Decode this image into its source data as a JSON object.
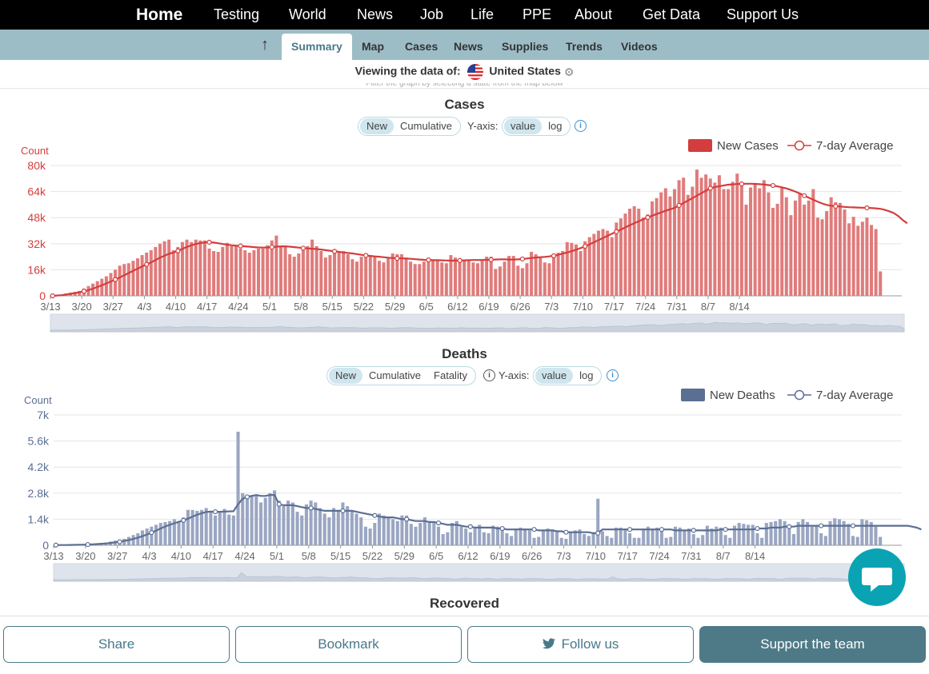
{
  "topnav": {
    "items": [
      "Home",
      "Testing",
      "World",
      "News",
      "Job",
      "Life",
      "PPE",
      "About",
      "Get Data",
      "Support Us"
    ]
  },
  "subnav": {
    "up_icon": "arrow-up-icon",
    "tabs": [
      "Summary",
      "Map",
      "Cases",
      "News",
      "Supplies",
      "Trends",
      "Videos"
    ],
    "active_tab": "Summary"
  },
  "viewing": {
    "label": "Viewing the data of:",
    "country": "United States",
    "flag_icon": "us-flag-icon",
    "settings_icon": "gear-icon",
    "hint": "Filter the graph by selecting a state from the map below"
  },
  "colors": {
    "cases": "#e07b7b",
    "cases_line": "#d43d3d",
    "deaths": "#9aa6c2",
    "deaths_line": "#5b6f94",
    "accent": "#48798a",
    "chat": "#0aa3b4"
  },
  "cases_panel": {
    "title": "Cases",
    "toggles": [
      "New",
      "Cumulative"
    ],
    "active_toggle": "New",
    "yaxis_label": "Y-axis:",
    "yaxis_options": [
      "value",
      "log"
    ],
    "active_yaxis": "value",
    "legend": [
      "New Cases",
      "7-day Average"
    ]
  },
  "deaths_panel": {
    "title": "Deaths",
    "toggles": [
      "New",
      "Cumulative",
      "Fatality"
    ],
    "active_toggle": "New",
    "yaxis_label": "Y-axis:",
    "yaxis_options": [
      "value",
      "log"
    ],
    "active_yaxis": "value",
    "legend": [
      "New Deaths",
      "7-day Average"
    ]
  },
  "recovered_panel": {
    "title": "Recovered"
  },
  "chart_data": [
    {
      "type": "bar",
      "title": "Cases",
      "ylabel": "Count",
      "ylim": [
        0,
        80000
      ],
      "yticks": [
        "0",
        "16k",
        "32k",
        "48k",
        "64k",
        "80k"
      ],
      "xticks": [
        "3/13",
        "3/20",
        "3/27",
        "4/3",
        "4/10",
        "4/17",
        "4/24",
        "5/1",
        "5/8",
        "5/15",
        "5/22",
        "5/29",
        "6/5",
        "6/12",
        "6/19",
        "6/26",
        "7/3",
        "7/10",
        "7/17",
        "7/24",
        "7/31",
        "8/7",
        "8/14"
      ],
      "x_start": "3/13",
      "x_end": "8/20",
      "legend_position": "top-right",
      "grid": true,
      "series": [
        {
          "name": "New Cases",
          "values": [
            0,
            400,
            800,
            1500,
            2000,
            2400,
            3000,
            4500,
            6000,
            7500,
            9000,
            10500,
            12000,
            14000,
            16000,
            18500,
            19500,
            20000,
            21500,
            23000,
            25000,
            26500,
            28000,
            30000,
            32000,
            33500,
            34500,
            28000,
            30000,
            33000,
            34500,
            33000,
            34500,
            34000,
            34000,
            29000,
            27500,
            27000,
            30000,
            32500,
            30500,
            31000,
            29000,
            28000,
            26500,
            28000,
            29000,
            29000,
            31000,
            34000,
            37000,
            30500,
            30000,
            25500,
            24000,
            26000,
            28000,
            30500,
            34500,
            30500,
            27500,
            23500,
            25000,
            26000,
            26500,
            27500,
            25500,
            22500,
            21000,
            24000,
            25000,
            25000,
            24000,
            21500,
            20500,
            23500,
            26000,
            25500,
            25500,
            23500,
            21000,
            19500,
            19500,
            21000,
            23500,
            22000,
            21500,
            20500,
            20000,
            25000,
            23500,
            22000,
            22000,
            22000,
            20500,
            20000,
            22000,
            24000,
            24000,
            16500,
            18000,
            21000,
            24500,
            24500,
            18500,
            17000,
            20000,
            27000,
            25500,
            23500,
            20500,
            20000,
            24500,
            26500,
            27500,
            33000,
            32500,
            31500,
            27500,
            33500,
            36000,
            38000,
            40000,
            41000,
            40000,
            36000,
            45000,
            47500,
            50500,
            53500,
            55000,
            53500,
            48000,
            50000,
            58000,
            60000,
            63500,
            66000,
            61000,
            65500,
            71000,
            72500,
            62000,
            67000,
            77500,
            72500,
            74500,
            72000,
            69500,
            74000,
            65500,
            65500,
            70000,
            75000,
            69500,
            56000,
            66500,
            68500,
            66000,
            71000,
            63500,
            54000,
            56500,
            67000,
            60500,
            49500,
            58500,
            63000,
            56000,
            58500,
            65500,
            48000,
            47000,
            52000,
            60500,
            57500,
            57000,
            53000,
            44500,
            48500,
            43000,
            45500,
            48000,
            43500,
            41000,
            15000
          ],
          "unit": "cases"
        },
        {
          "name": "7-day Average",
          "values": [
            0,
            200,
            400,
            800,
            1200,
            1700,
            2200,
            2800,
            3500,
            4400,
            5400,
            6500,
            7600,
            8800,
            10000,
            11300,
            12600,
            14000,
            15300,
            16700,
            18000,
            19300,
            20500,
            22000,
            23400,
            24600,
            25800,
            26600,
            27600,
            28800,
            30000,
            31000,
            31800,
            32400,
            32800,
            32900,
            32700,
            32300,
            31800,
            31400,
            31000,
            30800,
            30600,
            30400,
            30200,
            29900,
            29700,
            29600,
            29700,
            29900,
            30200,
            30400,
            30400,
            30200,
            29900,
            29600,
            29300,
            29100,
            28900,
            28700,
            28400,
            28000,
            27700,
            27300,
            27000,
            26600,
            26300,
            26000,
            25600,
            25200,
            24800,
            24500,
            24200,
            24000,
            23700,
            23400,
            23200,
            23000,
            23000,
            22900,
            22700,
            22500,
            22300,
            22100,
            22000,
            21900,
            21900,
            21800,
            21700,
            21600,
            21600,
            21700,
            21800,
            21900,
            22000,
            22000,
            22000,
            22100,
            22200,
            22300,
            22400,
            22400,
            22300,
            22300,
            22400,
            22600,
            22900,
            23200,
            23500,
            23700,
            23900,
            24200,
            24600,
            25200,
            25900,
            26600,
            27400,
            28300,
            29300,
            30400,
            31600,
            32900,
            34200,
            35500,
            36800,
            38100,
            39400,
            40700,
            42000,
            43300,
            44600,
            45800,
            47000,
            48100,
            49200,
            50200,
            51200,
            52200,
            53100,
            54000,
            55500,
            57000,
            58500,
            60000,
            61500,
            63000,
            64500,
            66000,
            66800,
            67300,
            67800,
            68200,
            68400,
            68600,
            68700,
            68800,
            68800,
            68700,
            68500,
            68300,
            68000,
            67700,
            67200,
            66600,
            65900,
            65000,
            64000,
            62800,
            61500,
            60200,
            59000,
            57800,
            56700,
            55800,
            55300,
            55000,
            54800,
            54600,
            54400,
            54300,
            54200,
            54100,
            54000,
            53900,
            53700,
            53400,
            52800,
            51900,
            50800,
            49000,
            46500,
            44500
          ],
          "unit": "cases"
        }
      ]
    },
    {
      "type": "bar",
      "title": "Deaths",
      "ylabel": "Count",
      "ylim": [
        0,
        7000
      ],
      "yticks": [
        "0",
        "1.4k",
        "2.8k",
        "4.2k",
        "5.6k",
        "7k"
      ],
      "xticks": [
        "3/13",
        "3/20",
        "3/27",
        "4/3",
        "4/10",
        "4/17",
        "4/24",
        "5/1",
        "5/8",
        "5/15",
        "5/22",
        "5/29",
        "6/5",
        "6/12",
        "6/19",
        "6/26",
        "7/3",
        "7/10",
        "7/17",
        "7/24",
        "7/31",
        "8/7",
        "8/14"
      ],
      "x_start": "3/13",
      "x_end": "8/18",
      "legend_position": "top-right",
      "grid": true,
      "series": [
        {
          "name": "New Deaths",
          "values": [
            10,
            12,
            15,
            20,
            25,
            35,
            40,
            50,
            60,
            80,
            120,
            150,
            200,
            250,
            300,
            350,
            450,
            550,
            650,
            800,
            900,
            1000,
            1100,
            1200,
            1250,
            1300,
            1400,
            1300,
            1500,
            1900,
            1900,
            1850,
            1900,
            2000,
            1850,
            1600,
            1800,
            1950,
            1650,
            1600,
            6100,
            2800,
            2600,
            2700,
            2700,
            2300,
            2550,
            2800,
            2950,
            2400,
            2100,
            2400,
            2300,
            1800,
            1600,
            2200,
            2400,
            2300,
            2000,
            1700,
            1500,
            2000,
            1900,
            2300,
            2100,
            1800,
            1700,
            1500,
            1000,
            900,
            1200,
            1700,
            1600,
            1500,
            1400,
            1300,
            1600,
            1600,
            1150,
            1000,
            1200,
            1500,
            1300,
            1200,
            1000,
            600,
            700,
            1200,
            1300,
            1000,
            900,
            700,
            900,
            1100,
            700,
            650,
            1050,
            1000,
            800,
            650,
            500,
            900,
            950,
            900,
            800,
            400,
            450,
            800,
            900,
            850,
            750,
            400,
            350,
            750,
            800,
            850,
            600,
            500,
            700,
            2500,
            750,
            500,
            400,
            950,
            950,
            900,
            650,
            400,
            400,
            900,
            1000,
            900,
            950,
            800,
            400,
            450,
            1000,
            950,
            800,
            900,
            600,
            400,
            550,
            1050,
            900,
            1000,
            950,
            550,
            400,
            1050,
            1200,
            1150,
            1100,
            1100,
            650,
            400,
            1200,
            1250,
            1300,
            1400,
            1300,
            1000,
            600,
            1250,
            1400,
            1250,
            1000,
            1050,
            650,
            500,
            1300,
            1450,
            1400,
            1300,
            1150,
            500,
            450,
            1400,
            1350,
            1250,
            1000,
            450
          ],
          "unit": "deaths"
        },
        {
          "name": "7-day Average",
          "values": [
            10,
            12,
            14,
            17,
            21,
            26,
            32,
            40,
            50,
            63,
            80,
            100,
            125,
            155,
            190,
            230,
            280,
            340,
            410,
            490,
            580,
            680,
            790,
            900,
            1010,
            1100,
            1180,
            1260,
            1340,
            1430,
            1540,
            1640,
            1720,
            1790,
            1810,
            1800,
            1800,
            1810,
            1820,
            1830,
            2200,
            2500,
            2600,
            2650,
            2700,
            2650,
            2650,
            2700,
            2700,
            2200,
            2150,
            2150,
            2150,
            2100,
            2050,
            2000,
            2000,
            1950,
            1900,
            1850,
            1850,
            1850,
            1850,
            1850,
            1850,
            1850,
            1800,
            1750,
            1700,
            1650,
            1600,
            1550,
            1500,
            1500,
            1500,
            1450,
            1400,
            1400,
            1350,
            1300,
            1300,
            1300,
            1250,
            1250,
            1200,
            1150,
            1100,
            1100,
            1100,
            1050,
            1000,
            1000,
            950,
            950,
            950,
            950,
            950,
            900,
            900,
            850,
            850,
            850,
            850,
            850,
            850,
            850,
            800,
            800,
            800,
            800,
            750,
            750,
            700,
            700,
            700,
            700,
            700,
            700,
            650,
            650,
            850,
            850,
            850,
            850,
            850,
            850,
            850,
            850,
            850,
            850,
            850,
            850,
            850,
            850,
            850,
            850,
            800,
            800,
            800,
            800,
            800,
            800,
            800,
            800,
            800,
            800,
            850,
            850,
            850,
            850,
            850,
            850,
            850,
            850,
            900,
            900,
            900,
            950,
            950,
            950,
            1000,
            1000,
            1000,
            1050,
            1050,
            1050,
            1050,
            1050,
            1050,
            1050,
            1050,
            1050,
            1050,
            1050,
            1050,
            1050,
            1050,
            1050,
            1050,
            1050,
            1050,
            1050,
            1050,
            1050,
            1050,
            1050,
            1050,
            1050,
            1000,
            950,
            850
          ],
          "unit": "deaths"
        }
      ]
    }
  ],
  "bottom_bar": {
    "share": "Share",
    "bookmark": "Bookmark",
    "follow": "Follow us",
    "follow_icon": "twitter-icon",
    "support": "Support the team"
  },
  "chat_icon": "chat-bubble-icon"
}
